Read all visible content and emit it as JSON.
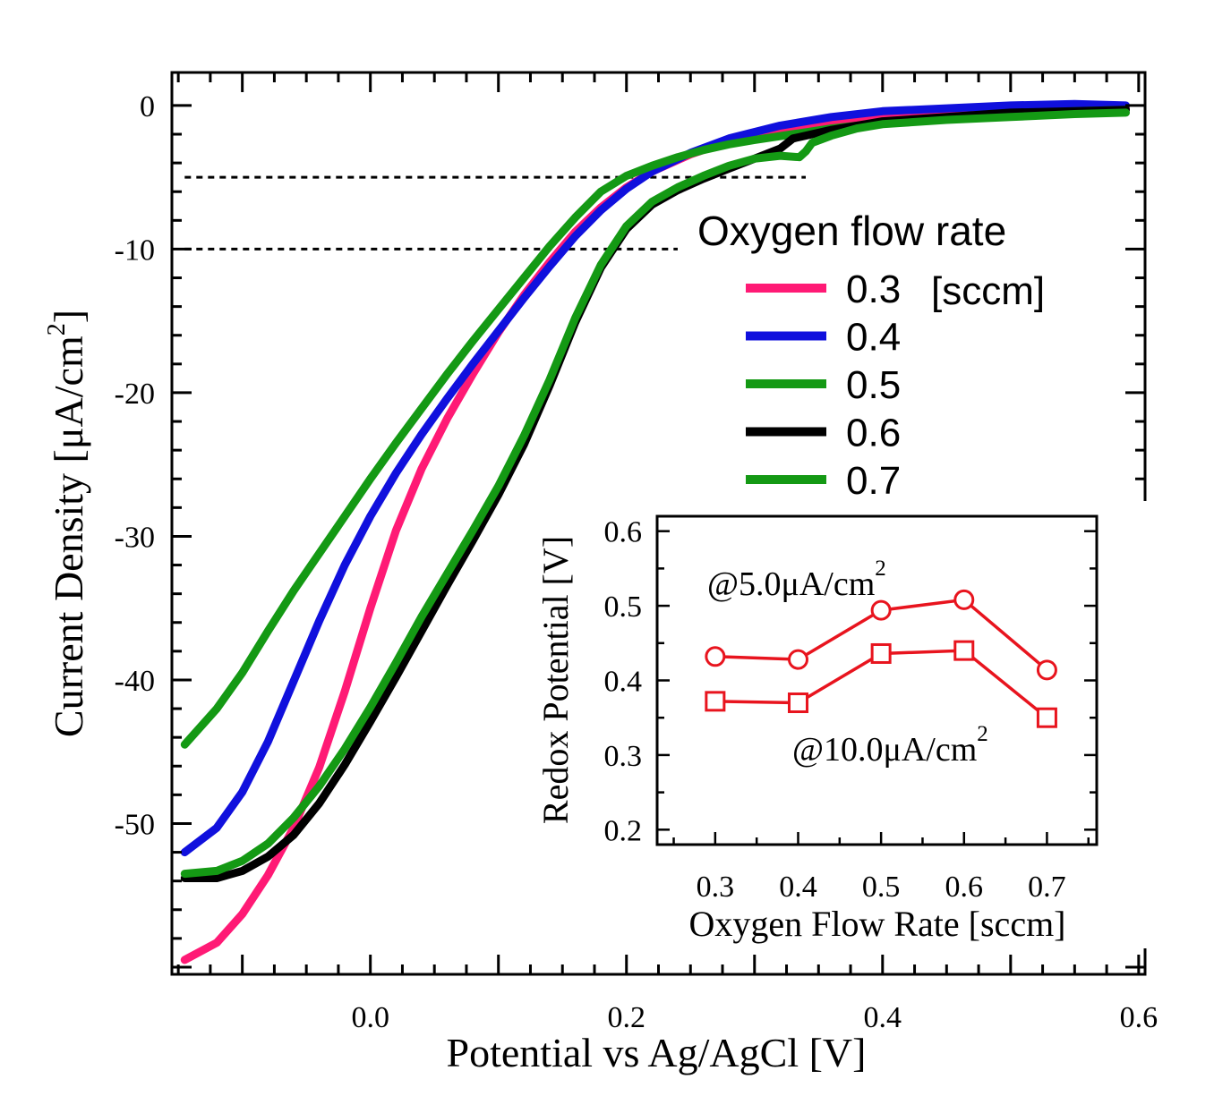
{
  "main_chart": {
    "type": "line",
    "xlabel": "Potential vs Ag/AgCl [V]",
    "ylabel": "Current Density [μA/cm",
    "ylabel_sup": "2",
    "ylabel_close": "]",
    "xlim": [
      -0.155,
      0.605
    ],
    "ylim": [
      -60.5,
      2.3
    ],
    "x_ticks": [
      {
        "value": 0.0,
        "label": "0.0"
      },
      {
        "value": 0.2,
        "label": "0.2"
      },
      {
        "value": 0.4,
        "label": "0.4"
      },
      {
        "value": 0.6,
        "label": "0.6"
      }
    ],
    "y_ticks": [
      {
        "value": 0,
        "label": "0"
      },
      {
        "value": -10,
        "label": "-10"
      },
      {
        "value": -20,
        "label": "-20"
      },
      {
        "value": -30,
        "label": "-30"
      },
      {
        "value": -40,
        "label": "-40"
      },
      {
        "value": -50,
        "label": "-50"
      }
    ],
    "reference_lines": [
      {
        "y": -5,
        "x_range": [
          -0.145,
          0.34
        ]
      },
      {
        "y": -10,
        "x_range": [
          -0.145,
          0.24
        ]
      }
    ],
    "legend_title": "Oxygen flow rate",
    "legend_unit": "[sccm]",
    "legend_position": "right",
    "series": [
      {
        "name": "0.3",
        "color": "#ff1a75",
        "points": [
          [
            -0.145,
            -59.5
          ],
          [
            -0.12,
            -58.3
          ],
          [
            -0.1,
            -56.3
          ],
          [
            -0.08,
            -53.6
          ],
          [
            -0.06,
            -50.3
          ],
          [
            -0.04,
            -46.1
          ],
          [
            -0.02,
            -40.8
          ],
          [
            0.0,
            -35.0
          ],
          [
            0.02,
            -29.6
          ],
          [
            0.04,
            -25.3
          ],
          [
            0.06,
            -21.8
          ],
          [
            0.08,
            -18.7
          ],
          [
            0.1,
            -15.8
          ],
          [
            0.12,
            -13.2
          ],
          [
            0.14,
            -10.9
          ],
          [
            0.16,
            -8.8
          ],
          [
            0.18,
            -7.1
          ],
          [
            0.2,
            -5.7
          ],
          [
            0.22,
            -4.6
          ],
          [
            0.25,
            -3.4
          ],
          [
            0.28,
            -2.5
          ],
          [
            0.32,
            -1.7
          ],
          [
            0.36,
            -1.1
          ],
          [
            0.4,
            -0.7
          ],
          [
            0.45,
            -0.4
          ],
          [
            0.5,
            -0.2
          ],
          [
            0.55,
            -0.1
          ],
          [
            0.59,
            -0.1
          ]
        ]
      },
      {
        "name": "0.4",
        "color": "#1010dd",
        "points": [
          [
            -0.145,
            -52.0
          ],
          [
            -0.12,
            -50.3
          ],
          [
            -0.1,
            -47.8
          ],
          [
            -0.08,
            -44.3
          ],
          [
            -0.06,
            -40.1
          ],
          [
            -0.04,
            -35.9
          ],
          [
            -0.02,
            -32.0
          ],
          [
            0.0,
            -28.6
          ],
          [
            0.02,
            -25.6
          ],
          [
            0.04,
            -22.9
          ],
          [
            0.06,
            -20.4
          ],
          [
            0.08,
            -18.0
          ],
          [
            0.1,
            -15.7
          ],
          [
            0.12,
            -13.4
          ],
          [
            0.14,
            -11.2
          ],
          [
            0.16,
            -9.1
          ],
          [
            0.18,
            -7.3
          ],
          [
            0.2,
            -5.8
          ],
          [
            0.22,
            -4.6
          ],
          [
            0.25,
            -3.3
          ],
          [
            0.28,
            -2.3
          ],
          [
            0.32,
            -1.4
          ],
          [
            0.36,
            -0.8
          ],
          [
            0.4,
            -0.4
          ],
          [
            0.45,
            -0.2
          ],
          [
            0.5,
            0.0
          ],
          [
            0.55,
            0.1
          ],
          [
            0.59,
            0.0
          ]
        ]
      },
      {
        "name": "0.5",
        "color": "#149914",
        "points": [
          [
            -0.145,
            -44.5
          ],
          [
            -0.12,
            -42.0
          ],
          [
            -0.1,
            -39.5
          ],
          [
            -0.08,
            -36.6
          ],
          [
            -0.06,
            -33.8
          ],
          [
            -0.04,
            -31.2
          ],
          [
            -0.02,
            -28.6
          ],
          [
            0.0,
            -26.0
          ],
          [
            0.02,
            -23.5
          ],
          [
            0.04,
            -21.1
          ],
          [
            0.06,
            -18.7
          ],
          [
            0.08,
            -16.4
          ],
          [
            0.1,
            -14.2
          ],
          [
            0.12,
            -12.0
          ],
          [
            0.14,
            -9.8
          ],
          [
            0.16,
            -7.8
          ],
          [
            0.18,
            -6.0
          ],
          [
            0.2,
            -4.9
          ],
          [
            0.22,
            -4.2
          ],
          [
            0.24,
            -3.6
          ],
          [
            0.26,
            -3.1
          ],
          [
            0.28,
            -2.7
          ],
          [
            0.3,
            -2.4
          ],
          [
            0.33,
            -2.0
          ],
          [
            0.36,
            -1.6
          ],
          [
            0.4,
            -1.2
          ],
          [
            0.45,
            -0.9
          ],
          [
            0.5,
            -0.6
          ],
          [
            0.55,
            -0.4
          ],
          [
            0.59,
            -0.3
          ]
        ]
      },
      {
        "name": "0.6",
        "color": "#000000",
        "points": [
          [
            -0.145,
            -53.8
          ],
          [
            -0.12,
            -53.8
          ],
          [
            -0.1,
            -53.3
          ],
          [
            -0.08,
            -52.3
          ],
          [
            -0.06,
            -50.8
          ],
          [
            -0.04,
            -48.6
          ],
          [
            -0.02,
            -45.9
          ],
          [
            0.0,
            -42.9
          ],
          [
            0.02,
            -39.8
          ],
          [
            0.04,
            -36.6
          ],
          [
            0.06,
            -33.4
          ],
          [
            0.08,
            -30.3
          ],
          [
            0.1,
            -27.1
          ],
          [
            0.12,
            -23.6
          ],
          [
            0.14,
            -19.5
          ],
          [
            0.16,
            -15.1
          ],
          [
            0.18,
            -11.3
          ],
          [
            0.2,
            -8.6
          ],
          [
            0.22,
            -6.9
          ],
          [
            0.24,
            -5.9
          ],
          [
            0.26,
            -5.1
          ],
          [
            0.28,
            -4.4
          ],
          [
            0.3,
            -3.7
          ],
          [
            0.32,
            -3.0
          ],
          [
            0.33,
            -2.3
          ],
          [
            0.34,
            -2.1
          ],
          [
            0.36,
            -1.7
          ],
          [
            0.38,
            -1.4
          ],
          [
            0.4,
            -1.1
          ],
          [
            0.45,
            -0.8
          ],
          [
            0.5,
            -0.5
          ],
          [
            0.55,
            -0.4
          ],
          [
            0.59,
            -0.3
          ]
        ]
      },
      {
        "name": "0.7",
        "color": "#149914",
        "points": [
          [
            -0.145,
            -53.5
          ],
          [
            -0.12,
            -53.3
          ],
          [
            -0.1,
            -52.6
          ],
          [
            -0.08,
            -51.4
          ],
          [
            -0.06,
            -49.6
          ],
          [
            -0.04,
            -47.4
          ],
          [
            -0.02,
            -44.8
          ],
          [
            0.0,
            -41.9
          ],
          [
            0.02,
            -38.8
          ],
          [
            0.04,
            -35.6
          ],
          [
            0.06,
            -32.6
          ],
          [
            0.08,
            -29.6
          ],
          [
            0.1,
            -26.5
          ],
          [
            0.12,
            -23.0
          ],
          [
            0.14,
            -19.1
          ],
          [
            0.16,
            -14.8
          ],
          [
            0.18,
            -11.1
          ],
          [
            0.2,
            -8.4
          ],
          [
            0.22,
            -6.7
          ],
          [
            0.24,
            -5.7
          ],
          [
            0.26,
            -4.9
          ],
          [
            0.28,
            -4.2
          ],
          [
            0.3,
            -3.7
          ],
          [
            0.32,
            -3.5
          ],
          [
            0.335,
            -3.6
          ],
          [
            0.34,
            -3.2
          ],
          [
            0.345,
            -2.6
          ],
          [
            0.36,
            -2.1
          ],
          [
            0.38,
            -1.6
          ],
          [
            0.4,
            -1.3
          ],
          [
            0.45,
            -1.0
          ],
          [
            0.5,
            -0.8
          ],
          [
            0.55,
            -0.6
          ],
          [
            0.59,
            -0.5
          ]
        ]
      }
    ]
  },
  "inset_chart": {
    "type": "line",
    "xlabel": "Oxygen Flow Rate [sccm]",
    "ylabel": "Redox Potential [V]",
    "xlim": [
      0.23,
      0.76
    ],
    "ylim": [
      0.18,
      0.62
    ],
    "x_ticks": [
      {
        "value": 0.3,
        "label": "0.3"
      },
      {
        "value": 0.4,
        "label": "0.4"
      },
      {
        "value": 0.5,
        "label": "0.5"
      },
      {
        "value": 0.6,
        "label": "0.6"
      },
      {
        "value": 0.7,
        "label": "0.7"
      }
    ],
    "y_ticks": [
      {
        "value": 0.2,
        "label": "0.2"
      },
      {
        "value": 0.3,
        "label": "0.3"
      },
      {
        "value": 0.4,
        "label": "0.4"
      },
      {
        "value": 0.5,
        "label": "0.5"
      },
      {
        "value": 0.6,
        "label": "0.6"
      }
    ],
    "color": "#e8141e",
    "series": [
      {
        "name": "@5.0μA/cm",
        "sup": "2",
        "marker": "circle",
        "x": [
          0.3,
          0.4,
          0.5,
          0.6,
          0.7
        ],
        "values": [
          0.432,
          0.428,
          0.494,
          0.508,
          0.414
        ]
      },
      {
        "name": "@10.0μA/cm",
        "sup": "2",
        "marker": "square",
        "x": [
          0.3,
          0.4,
          0.5,
          0.6,
          0.7
        ],
        "values": [
          0.372,
          0.37,
          0.436,
          0.44,
          0.35
        ]
      }
    ]
  }
}
